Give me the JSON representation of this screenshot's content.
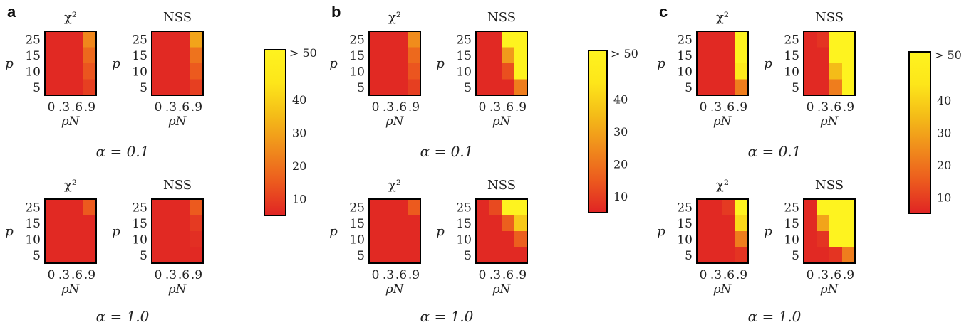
{
  "scale": {
    "min": 5,
    "max": 55,
    "stops": [
      "#e02424",
      "#ec5a1e",
      "#f08c1c",
      "#f4bc18",
      "#fde61a",
      "#fef31f"
    ],
    "ticks": [
      "10",
      "20",
      "30",
      "40"
    ],
    "top_label": "> 50",
    "tick_values": [
      10,
      20,
      30,
      40
    ]
  },
  "cell_border_color": "#000000",
  "chart_data": [
    {
      "type": "heatmap",
      "panel": "a",
      "alpha_labels": [
        "α = 0.1",
        "α = 1.0"
      ],
      "x_categories": [
        "0",
        ".3",
        ".6",
        ".9"
      ],
      "y_categories": [
        "25",
        "15",
        "10",
        "5"
      ],
      "xlabel": "ρN",
      "ylabel": "p",
      "heatmaps": [
        {
          "title": "χ²",
          "alpha": "0.1",
          "values": [
            [
              6,
              6,
              6,
              24
            ],
            [
              6,
              6,
              6,
              18
            ],
            [
              6,
              6,
              6,
              14
            ],
            [
              6,
              6,
              6,
              10
            ]
          ]
        },
        {
          "title": "NSS",
          "alpha": "0.1",
          "values": [
            [
              6,
              6,
              6,
              30
            ],
            [
              6,
              6,
              6,
              20
            ],
            [
              6,
              6,
              6,
              15
            ],
            [
              6,
              6,
              6,
              10
            ]
          ]
        },
        {
          "title": "χ²",
          "alpha": "1.0",
          "values": [
            [
              6,
              6,
              6,
              15
            ],
            [
              6,
              6,
              6,
              6
            ],
            [
              6,
              6,
              6,
              6
            ],
            [
              6,
              6,
              6,
              6
            ]
          ]
        },
        {
          "title": "NSS",
          "alpha": "1.0",
          "values": [
            [
              6,
              6,
              6,
              15
            ],
            [
              6,
              6,
              6,
              9
            ],
            [
              6,
              6,
              6,
              7
            ],
            [
              6,
              6,
              6,
              6
            ]
          ]
        }
      ]
    },
    {
      "type": "heatmap",
      "panel": "b",
      "alpha_labels": [
        "α = 0.1",
        "α = 1.0"
      ],
      "x_categories": [
        "0",
        ".3",
        ".6",
        ".9"
      ],
      "y_categories": [
        "25",
        "15",
        "10",
        "5"
      ],
      "xlabel": "ρN",
      "ylabel": "p",
      "heatmaps": [
        {
          "title": "χ²",
          "alpha": "0.1",
          "values": [
            [
              6,
              6,
              6,
              25
            ],
            [
              6,
              6,
              6,
              18
            ],
            [
              6,
              6,
              6,
              14
            ],
            [
              6,
              6,
              6,
              10
            ]
          ]
        },
        {
          "title": "NSS",
          "alpha": "0.1",
          "values": [
            [
              6,
              6,
              55,
              55
            ],
            [
              6,
              6,
              28,
              55
            ],
            [
              6,
              6,
              13,
              55
            ],
            [
              6,
              6,
              6,
              22
            ]
          ]
        },
        {
          "title": "χ²",
          "alpha": "1.0",
          "values": [
            [
              6,
              6,
              6,
              15
            ],
            [
              6,
              6,
              6,
              6
            ],
            [
              6,
              6,
              6,
              6
            ],
            [
              6,
              6,
              6,
              6
            ]
          ]
        },
        {
          "title": "NSS",
          "alpha": "1.0",
          "values": [
            [
              6,
              12,
              55,
              55
            ],
            [
              6,
              6,
              16,
              38
            ],
            [
              6,
              6,
              6,
              16
            ],
            [
              6,
              6,
              6,
              6
            ]
          ]
        }
      ]
    },
    {
      "type": "heatmap",
      "panel": "c",
      "alpha_labels": [
        "α = 0.1",
        "α = 1.0"
      ],
      "x_categories": [
        "0",
        ".3",
        ".6",
        ".9"
      ],
      "y_categories": [
        "25",
        "15",
        "10",
        "5"
      ],
      "xlabel": "ρN",
      "ylabel": "p",
      "heatmaps": [
        {
          "title": "χ²",
          "alpha": "0.1",
          "values": [
            [
              6,
              6,
              6,
              55
            ],
            [
              6,
              6,
              6,
              55
            ],
            [
              6,
              6,
              6,
              48
            ],
            [
              6,
              6,
              6,
              22
            ]
          ]
        },
        {
          "title": "NSS",
          "alpha": "0.1",
          "values": [
            [
              6,
              8,
              55,
              55
            ],
            [
              6,
              6,
              55,
              55
            ],
            [
              6,
              6,
              35,
              55
            ],
            [
              6,
              6,
              22,
              55
            ]
          ]
        },
        {
          "title": "χ²",
          "alpha": "1.0",
          "values": [
            [
              6,
              6,
              9,
              55
            ],
            [
              6,
              6,
              6,
              42
            ],
            [
              6,
              6,
              6,
              22
            ],
            [
              6,
              6,
              6,
              8
            ]
          ]
        },
        {
          "title": "NSS",
          "alpha": "1.0",
          "values": [
            [
              6,
              55,
              55,
              55
            ],
            [
              6,
              30,
              55,
              55
            ],
            [
              6,
              8,
              55,
              55
            ],
            [
              6,
              6,
              8,
              22
            ]
          ]
        }
      ]
    }
  ]
}
